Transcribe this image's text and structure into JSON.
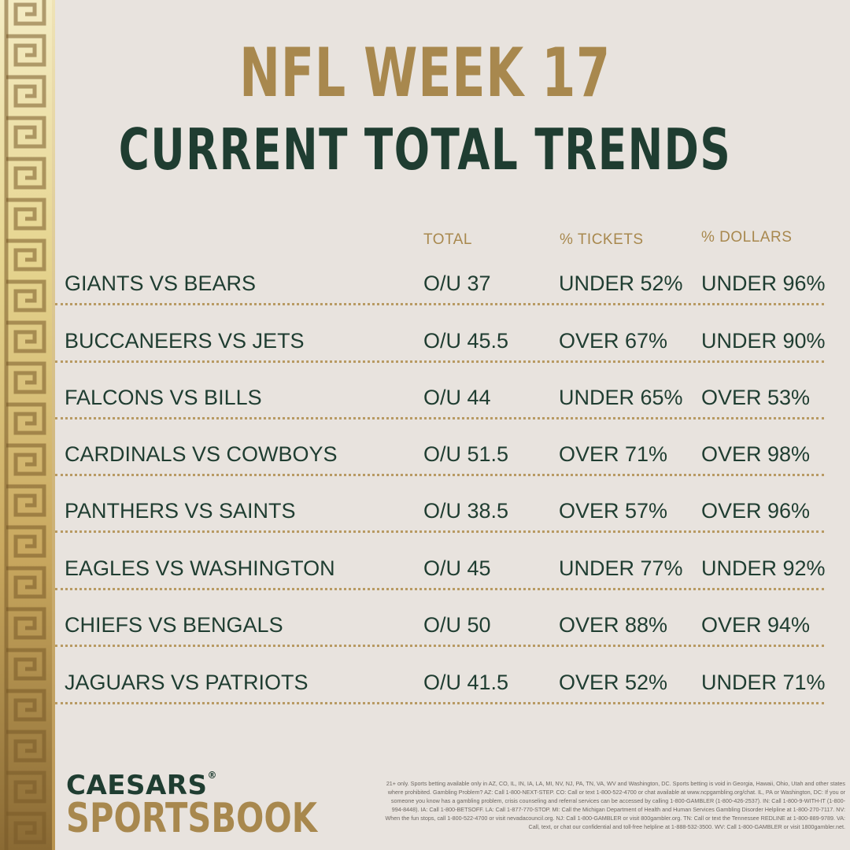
{
  "title": "NFL WEEK 17",
  "subtitle": "CURRENT TOTAL TRENDS",
  "columns": {
    "total": "TOTAL",
    "tickets": "% TICKETS",
    "dollars": "% DOLLARS"
  },
  "rows": [
    {
      "matchup": "GIANTS VS BEARS",
      "total": "O/U 37",
      "tickets": "UNDER 52%",
      "dollars": "UNDER 96%"
    },
    {
      "matchup": "BUCCANEERS VS JETS",
      "total": "O/U 45.5",
      "tickets": "OVER 67%",
      "dollars": "UNDER 90%"
    },
    {
      "matchup": "FALCONS VS BILLS",
      "total": "O/U 44",
      "tickets": "UNDER 65%",
      "dollars": "OVER 53%"
    },
    {
      "matchup": "CARDINALS VS COWBOYS",
      "total": "O/U 51.5",
      "tickets": "OVER 71%",
      "dollars": "OVER 98%"
    },
    {
      "matchup": "PANTHERS VS SAINTS",
      "total": "O/U 38.5",
      "tickets": "OVER 57%",
      "dollars": "OVER 96%"
    },
    {
      "matchup": "EAGLES VS WASHINGTON",
      "total": "O/U 45",
      "tickets": "UNDER 77%",
      "dollars": "UNDER 92%"
    },
    {
      "matchup": "CHIEFS VS BENGALS",
      "total": "O/U 50",
      "tickets": "OVER 88%",
      "dollars": "OVER 94%"
    },
    {
      "matchup": "JAGUARS VS PATRIOTS",
      "total": "O/U 41.5",
      "tickets": "OVER 52%",
      "dollars": "UNDER 71%"
    }
  ],
  "logo": {
    "line1": "CAESARS",
    "mark": "®",
    "line2": "SPORTSBOOK"
  },
  "disclaimer": "21+ only. Sports betting available only in AZ, CO, IL, IN, IA, LA, MI, NV, NJ, PA, TN, VA, WV and Washington, DC. Sports betting is void in Georgia, Hawaii, Ohio, Utah and other states where prohibited. Gambling Problem? AZ: Call 1-800-NEXT-STEP. CO: Call or text 1-800-522-4700 or chat available at www.ncpgambling.org/chat. IL, PA or Washington, DC: If you or someone you know has a gambling problem, crisis counseling and referral services can be accessed by calling 1-800-GAMBLER (1-800-426-2537). IN: Call 1-800-9-WITH-IT (1-800-994-8448). IA: Call 1-800-BETSOFF. LA: Call 1-877-770-STOP. MI: Call the Michigan Department of Health and Human Services Gambling Disorder Helpline at 1-800-270-7117. NV: When the fun stops, call 1-800-522-4700 or visit nevadacouncil.org. NJ: Call 1-800-GAMBLER or visit 800gambler.org. TN: Call or text the Tennessee REDLINE at 1-800-889-9789. VA: Call, text, or chat our confidential and toll-free helpline at 1-888-532-3500. WV: Call 1-800-GAMBLER or visit 1800gambler.net.",
  "colors": {
    "background": "#e8e3de",
    "gold": "#a8884e",
    "green": "#1f3d31"
  }
}
